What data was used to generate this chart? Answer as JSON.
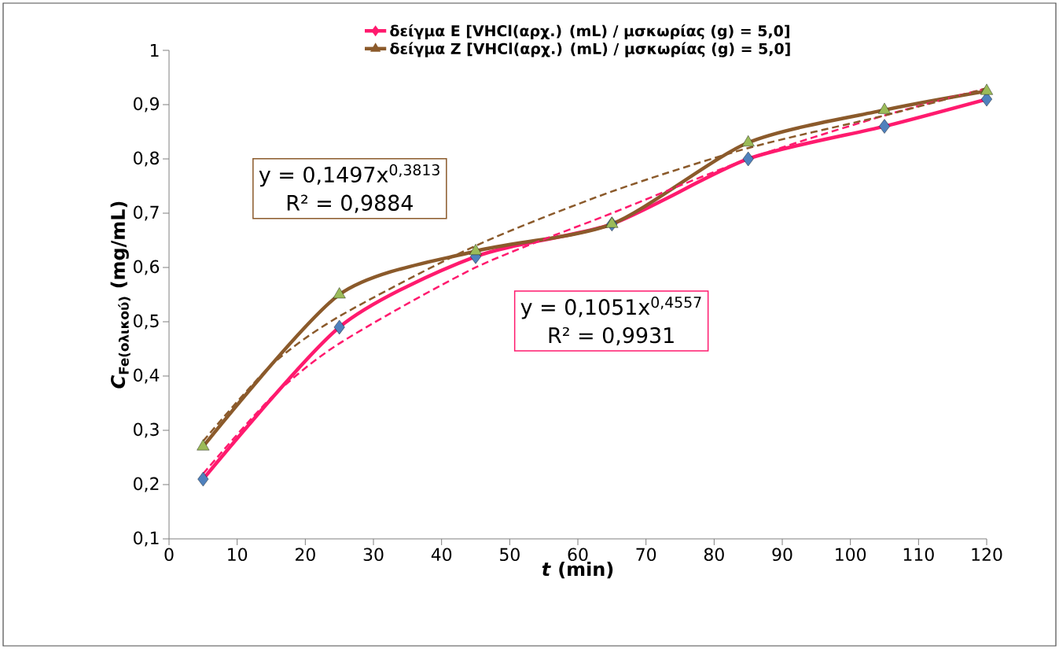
{
  "chart_data": {
    "type": "line",
    "xlabel": "*t* (min)",
    "ylabel": "*C*$_{Fe(ολικού)}$ (mg/mL)",
    "xlim": [
      0,
      120
    ],
    "xticks": [
      0,
      10,
      20,
      30,
      40,
      50,
      60,
      70,
      80,
      90,
      100,
      110,
      120
    ],
    "ylim": [
      0.1,
      1
    ],
    "yticks": [
      {
        "value": 0.1,
        "label": "0,1"
      },
      {
        "value": 0.2,
        "label": "0,2"
      },
      {
        "value": 0.3,
        "label": "0,3"
      },
      {
        "value": 0.4,
        "label": "0,4"
      },
      {
        "value": 0.5,
        "label": "0,5"
      },
      {
        "value": 0.6,
        "label": "0,6"
      },
      {
        "value": 0.7,
        "label": "0,7"
      },
      {
        "value": 0.8,
        "label": "0,8"
      },
      {
        "value": 0.9,
        "label": "0,9"
      },
      {
        "value": 1,
        "label": "1"
      }
    ],
    "x": [
      5,
      25,
      45,
      65,
      85,
      105,
      120
    ],
    "grid": false,
    "legend": "top",
    "series": [
      {
        "name": "δείγμα E [VHCl(αρχ.) (mL) / μσκωρίας (g) = 5,0]",
        "color": "#ff1a6e",
        "colors": [
          "#4f81bd",
          "#4f81bd",
          "#4f81bd",
          "#4f81bd",
          "#4f81bd",
          "#4f81bd",
          "#4f81bd"
        ],
        "marker": "diamond",
        "line_style": "solid",
        "values": [
          0.21,
          0.49,
          0.62,
          0.68,
          0.8,
          0.86,
          0.91
        ]
      },
      {
        "name": "δείγμα Z [VHCl(αρχ.) (mL) / μσκωρίας (g) = 5,0]",
        "color": "#8b5a2b",
        "colors": [
          "#9bbb59",
          "#9bbb59",
          "#9bbb59",
          "#9bbb59",
          "#9bbb59",
          "#9bbb59",
          "#9bbb59"
        ],
        "marker": "triangle",
        "line_style": "solid",
        "values": [
          0.27,
          0.55,
          0.63,
          0.68,
          0.83,
          0.89,
          0.925
        ]
      },
      {
        "color": "#ff1a6e",
        "marker": "none",
        "line_style": "dashed",
        "x": [
          5,
          15,
          25,
          45,
          65,
          85,
          105,
          120
        ],
        "values": [
          0.22,
          0.36,
          0.46,
          0.6,
          0.7,
          0.8,
          0.88,
          0.93
        ]
      },
      {
        "color": "#8b5a2b",
        "marker": "none",
        "line_style": "dashed",
        "x": [
          5,
          15,
          25,
          45,
          65,
          85,
          105,
          120
        ],
        "values": [
          0.28,
          0.42,
          0.51,
          0.64,
          0.74,
          0.82,
          0.88,
          0.93
        ]
      }
    ],
    "annotations": [
      "y = 0,1497x$^{0,3813}$",
      "R² = 0,9884",
      "y = 0,1051x$^{0,4557}$",
      "R² = 0,9931"
    ]
  }
}
